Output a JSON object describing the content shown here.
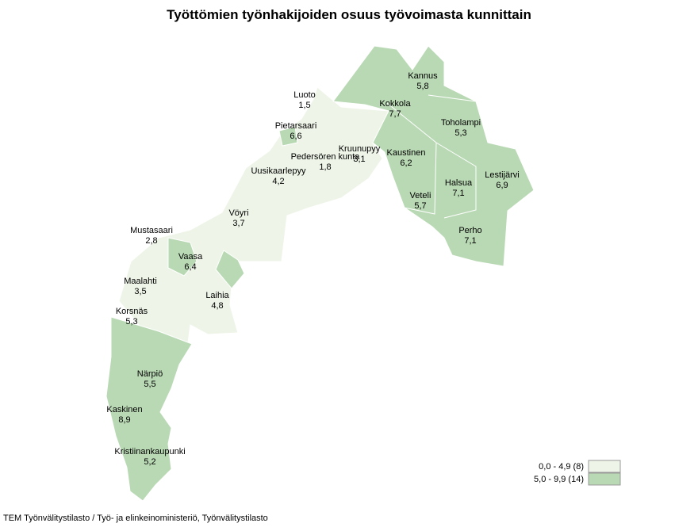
{
  "title": "Työttömien työnhakijoiden osuus työvoimasta kunnittain",
  "municipalities": [
    {
      "name": "Kannus",
      "value": "5,8"
    },
    {
      "name": "Luoto",
      "value": "1,5"
    },
    {
      "name": "Kokkola",
      "value": "7,7"
    },
    {
      "name": "Toholampi",
      "value": "5,3"
    },
    {
      "name": "Pietarsaari",
      "value": "6,6"
    },
    {
      "name": "Kruunupyy",
      "value": "3,1"
    },
    {
      "name": "Kaustinen",
      "value": "6,2"
    },
    {
      "name": "Pedersören kunta",
      "value": "1,8"
    },
    {
      "name": "Uusikaarlepyy",
      "value": "4,2"
    },
    {
      "name": "Lestijärvi",
      "value": "6,9"
    },
    {
      "name": "Halsua",
      "value": "7,1"
    },
    {
      "name": "Veteli",
      "value": "5,7"
    },
    {
      "name": "Vöyri",
      "value": "3,7"
    },
    {
      "name": "Mustasaari",
      "value": "2,8"
    },
    {
      "name": "Perho",
      "value": "7,1"
    },
    {
      "name": "Vaasa",
      "value": "6,4"
    },
    {
      "name": "Maalahti",
      "value": "3,5"
    },
    {
      "name": "Laihia",
      "value": "4,8"
    },
    {
      "name": "Korsnäs",
      "value": "5,3"
    },
    {
      "name": "Närpiö",
      "value": "5,5"
    },
    {
      "name": "Kaskinen",
      "value": "8,9"
    },
    {
      "name": "Kristiinankaupunki",
      "value": "5,2"
    }
  ],
  "legend": [
    "0,0 - 4,9 (8)",
    "5,0 - 9,9 (14)"
  ],
  "source": "TEM Työnvälitystilasto / Työ- ja elinkeinoministeriö, Työnvälitystilasto"
}
